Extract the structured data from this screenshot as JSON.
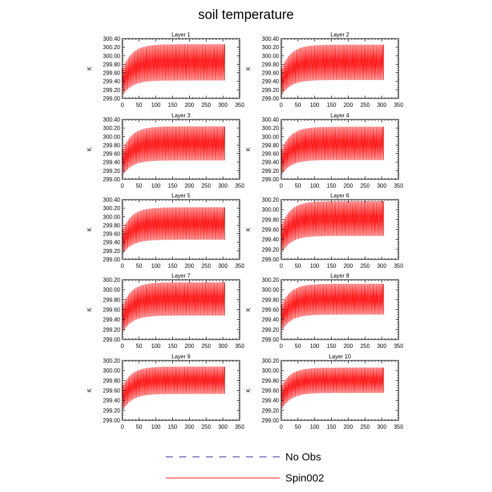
{
  "title": "soil temperature",
  "legend": {
    "placement": "bottom-center",
    "entries": [
      {
        "label": "No Obs",
        "style": "dashed",
        "color": "#1a1a8c"
      },
      {
        "label": "Spin002",
        "style": "solid",
        "color": "#ff0000"
      }
    ]
  },
  "chart_data": [
    {
      "type": "line",
      "title": "Layer 1",
      "ylabel": "K",
      "xlim": [
        0,
        350
      ],
      "ylim": [
        299.0,
        300.4
      ],
      "xticks": [
        "0",
        "50",
        "100",
        "150",
        "200",
        "250",
        "300",
        "350"
      ],
      "yticks": [
        "299.00",
        "299.20",
        "299.40",
        "299.60",
        "299.80",
        "300.00",
        "300.20",
        "300.40"
      ],
      "series": [
        {
          "x_range": [
            0,
            305
          ],
          "min_start": 299.05,
          "min_end": 299.42,
          "max_start": 299.7,
          "max_end": 300.27,
          "color": "#ff0000"
        }
      ]
    },
    {
      "type": "line",
      "title": "Layer 2",
      "ylabel": "K",
      "xlim": [
        0,
        350
      ],
      "ylim": [
        299.0,
        300.4
      ],
      "xticks": [
        "0",
        "50",
        "100",
        "150",
        "200",
        "250",
        "300",
        "350"
      ],
      "yticks": [
        "299.00",
        "299.20",
        "299.40",
        "299.60",
        "299.80",
        "300.00",
        "300.20",
        "300.40"
      ],
      "series": [
        {
          "x_range": [
            0,
            305
          ],
          "min_start": 299.05,
          "min_end": 299.43,
          "max_start": 299.7,
          "max_end": 300.26,
          "color": "#ff0000"
        }
      ]
    },
    {
      "type": "line",
      "title": "Layer 3",
      "ylabel": "K",
      "xlim": [
        0,
        350
      ],
      "ylim": [
        299.0,
        300.4
      ],
      "xticks": [
        "0",
        "50",
        "100",
        "150",
        "200",
        "250",
        "300",
        "350"
      ],
      "yticks": [
        "299.00",
        "299.20",
        "299.40",
        "299.60",
        "299.80",
        "300.00",
        "300.20",
        "300.40"
      ],
      "series": [
        {
          "x_range": [
            0,
            305
          ],
          "min_start": 299.07,
          "min_end": 299.44,
          "max_start": 299.7,
          "max_end": 300.24,
          "color": "#ff0000"
        }
      ]
    },
    {
      "type": "line",
      "title": "Layer 4",
      "ylabel": "K",
      "xlim": [
        0,
        350
      ],
      "ylim": [
        299.0,
        300.4
      ],
      "xticks": [
        "0",
        "50",
        "100",
        "150",
        "200",
        "250",
        "300",
        "350"
      ],
      "yticks": [
        "299.00",
        "299.20",
        "299.40",
        "299.60",
        "299.80",
        "300.00",
        "300.20",
        "300.40"
      ],
      "series": [
        {
          "x_range": [
            0,
            305
          ],
          "min_start": 299.08,
          "min_end": 299.45,
          "max_start": 299.7,
          "max_end": 300.23,
          "color": "#ff0000"
        }
      ]
    },
    {
      "type": "line",
      "title": "Layer 5",
      "ylabel": "K",
      "xlim": [
        0,
        350
      ],
      "ylim": [
        299.0,
        300.4
      ],
      "xticks": [
        "0",
        "50",
        "100",
        "150",
        "200",
        "250",
        "300",
        "350"
      ],
      "yticks": [
        "299.00",
        "299.20",
        "299.40",
        "299.60",
        "299.80",
        "300.00",
        "300.20",
        "300.40"
      ],
      "series": [
        {
          "x_range": [
            0,
            305
          ],
          "min_start": 299.1,
          "min_end": 299.46,
          "max_start": 299.7,
          "max_end": 300.22,
          "color": "#ff0000"
        }
      ]
    },
    {
      "type": "line",
      "title": "Layer 6",
      "ylabel": "K",
      "xlim": [
        0,
        350
      ],
      "ylim": [
        299.0,
        300.2
      ],
      "xticks": [
        "0",
        "50",
        "100",
        "150",
        "200",
        "250",
        "300",
        "350"
      ],
      "yticks": [
        "299.00",
        "299.20",
        "299.40",
        "299.60",
        "299.80",
        "300.00",
        "300.20"
      ],
      "series": [
        {
          "x_range": [
            0,
            305
          ],
          "min_start": 299.1,
          "min_end": 299.47,
          "max_start": 299.7,
          "max_end": 300.17,
          "color": "#ff0000"
        }
      ]
    },
    {
      "type": "line",
      "title": "Layer 7",
      "ylabel": "K",
      "xlim": [
        0,
        350
      ],
      "ylim": [
        299.0,
        300.2
      ],
      "xticks": [
        "0",
        "50",
        "100",
        "150",
        "200",
        "250",
        "300",
        "350"
      ],
      "yticks": [
        "299.00",
        "299.20",
        "299.40",
        "299.60",
        "299.80",
        "300.00",
        "300.20"
      ],
      "series": [
        {
          "x_range": [
            0,
            305
          ],
          "min_start": 299.12,
          "min_end": 299.48,
          "max_start": 299.7,
          "max_end": 300.15,
          "color": "#ff0000"
        }
      ]
    },
    {
      "type": "line",
      "title": "Layer 8",
      "ylabel": "K",
      "xlim": [
        0,
        350
      ],
      "ylim": [
        299.0,
        300.2
      ],
      "xticks": [
        "0",
        "50",
        "100",
        "150",
        "200",
        "250",
        "300",
        "350"
      ],
      "yticks": [
        "299.00",
        "299.20",
        "299.40",
        "299.60",
        "299.80",
        "300.00",
        "300.20"
      ],
      "series": [
        {
          "x_range": [
            0,
            305
          ],
          "min_start": 299.15,
          "min_end": 299.5,
          "max_start": 299.7,
          "max_end": 300.12,
          "color": "#ff0000"
        }
      ]
    },
    {
      "type": "line",
      "title": "Layer 9",
      "ylabel": "K",
      "xlim": [
        0,
        350
      ],
      "ylim": [
        299.0,
        300.2
      ],
      "xticks": [
        "0",
        "50",
        "100",
        "150",
        "200",
        "250",
        "300",
        "350"
      ],
      "yticks": [
        "299.00",
        "299.20",
        "299.40",
        "299.60",
        "299.80",
        "300.00",
        "300.20"
      ],
      "series": [
        {
          "x_range": [
            0,
            305
          ],
          "min_start": 299.18,
          "min_end": 299.53,
          "max_start": 299.7,
          "max_end": 300.08,
          "color": "#ff0000"
        }
      ]
    },
    {
      "type": "line",
      "title": "Layer 10",
      "ylabel": "K",
      "xlim": [
        0,
        350
      ],
      "ylim": [
        299.0,
        300.2
      ],
      "xticks": [
        "0",
        "50",
        "100",
        "150",
        "200",
        "250",
        "300",
        "350"
      ],
      "yticks": [
        "299.00",
        "299.20",
        "299.40",
        "299.60",
        "299.80",
        "300.00",
        "300.20"
      ],
      "series": [
        {
          "x_range": [
            0,
            305
          ],
          "min_start": 299.2,
          "min_end": 299.55,
          "max_start": 299.7,
          "max_end": 300.06,
          "color": "#ff0000"
        }
      ]
    }
  ]
}
